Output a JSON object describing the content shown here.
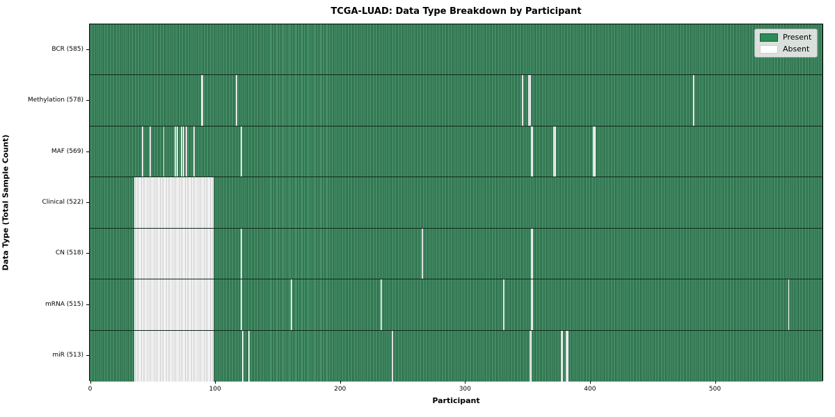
{
  "figure": {
    "background": "#ffffff"
  },
  "chart_data": {
    "type": "heatmap",
    "title": "TCGA-LUAD: Data Type Breakdown by Participant",
    "xlabel": "Participant",
    "ylabel": "Data Type (Total Sample Count)",
    "x_ticks": [
      0,
      100,
      200,
      300,
      400,
      500
    ],
    "x_range": [
      0,
      586
    ],
    "participants_total": 585,
    "cell_states": [
      "Present",
      "Absent"
    ],
    "colors": {
      "present": "#2e8b57",
      "absent": "#ffffff",
      "present_stripe_light": "#4f9e74",
      "present_stripe_dark": "#20593a",
      "absent_stripe_gray": "#c4c4c4"
    },
    "legend": {
      "position": "upper right",
      "items": [
        {
          "label": "Present",
          "color": "#2e8b57"
        },
        {
          "label": "Absent",
          "color": "#ffffff"
        }
      ]
    },
    "rows": [
      {
        "name": "BCR",
        "label": "BCR (585)",
        "count": 585,
        "absent_ranges": []
      },
      {
        "name": "Methylation",
        "label": "Methylation (578)",
        "count": 578,
        "absent_ranges": [
          [
            88,
            90
          ],
          [
            116,
            117
          ],
          [
            345,
            346
          ],
          [
            350,
            352
          ],
          [
            482,
            483
          ]
        ]
      },
      {
        "name": "MAF",
        "label": "MAF (569)",
        "count": 569,
        "absent_ranges": [
          [
            41,
            42
          ],
          [
            47,
            48
          ],
          [
            58,
            59
          ],
          [
            67,
            68
          ],
          [
            69,
            70
          ],
          [
            72,
            73
          ],
          [
            74,
            75
          ],
          [
            76,
            77
          ],
          [
            82,
            83
          ],
          [
            120,
            121
          ],
          [
            352,
            354
          ],
          [
            370,
            372
          ],
          [
            402,
            404
          ]
        ]
      },
      {
        "name": "Clinical",
        "label": "Clinical (522)",
        "count": 522,
        "absent_ranges": [
          [
            35,
            98
          ]
        ]
      },
      {
        "name": "CN",
        "label": "CN (518)",
        "count": 518,
        "absent_ranges": [
          [
            35,
            98
          ],
          [
            120,
            121
          ],
          [
            265,
            266
          ],
          [
            352,
            354
          ]
        ]
      },
      {
        "name": "mRNA",
        "label": "mRNA (515)",
        "count": 515,
        "absent_ranges": [
          [
            35,
            98
          ],
          [
            120,
            121
          ],
          [
            160,
            161
          ],
          [
            232,
            233
          ],
          [
            330,
            331
          ],
          [
            352,
            354
          ],
          [
            558,
            559
          ]
        ]
      },
      {
        "name": "miR",
        "label": "miR (513)",
        "count": 513,
        "absent_ranges": [
          [
            35,
            98
          ],
          [
            121,
            122
          ],
          [
            126,
            127
          ],
          [
            241,
            242
          ],
          [
            351,
            353
          ],
          [
            376,
            378
          ],
          [
            380,
            382
          ]
        ]
      }
    ]
  }
}
